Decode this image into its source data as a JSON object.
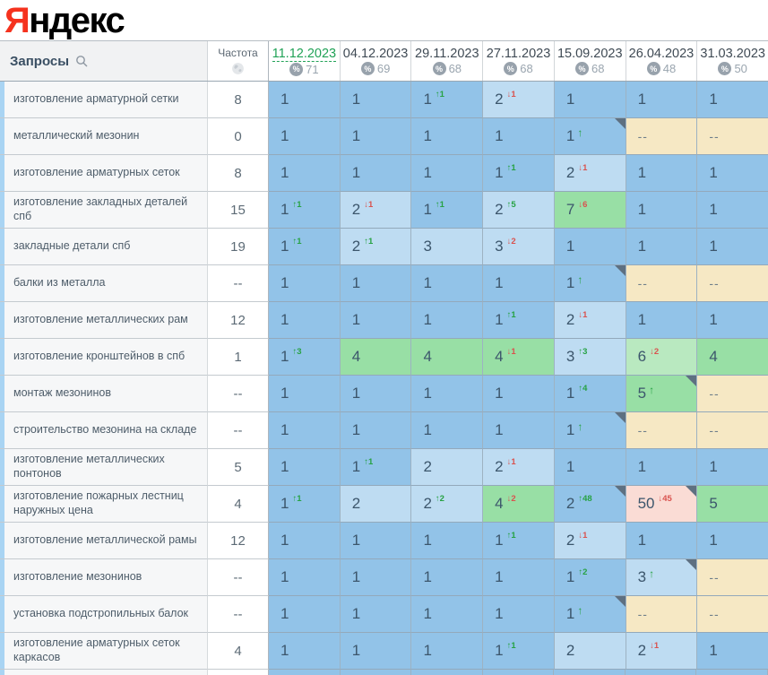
{
  "logo": {
    "first_letter": "Я",
    "rest": "ндекс"
  },
  "header": {
    "queries_label": "Запросы",
    "frequency_label": "Частота",
    "dates": [
      {
        "label": "11.12.2023",
        "metric": "71",
        "selected": true
      },
      {
        "label": "04.12.2023",
        "metric": "69",
        "selected": false
      },
      {
        "label": "29.11.2023",
        "metric": "68",
        "selected": false
      },
      {
        "label": "27.11.2023",
        "metric": "68",
        "selected": false
      },
      {
        "label": "15.09.2023",
        "metric": "68",
        "selected": false
      },
      {
        "label": "26.04.2023",
        "metric": "48",
        "selected": false
      },
      {
        "label": "31.03.2023",
        "metric": "50",
        "selected": false
      }
    ],
    "percent_icon": "%"
  },
  "colors": {
    "logo_red": "#f5321e",
    "selected_date_green": "#21a257",
    "change_up_green": "#27a244",
    "change_down_red": "#d9534f",
    "cell_blue": "#92c3e8",
    "cell_lightblue": "#bedcf2",
    "cell_green": "#98dfa5",
    "cell_lightgreen": "#b9e9c0",
    "cell_beige": "#f6e8c4",
    "cell_pink": "#fadcd5",
    "row_stripe_blue": "#a9d4f3"
  },
  "rows": [
    {
      "query": "изготовление арматурной сетки",
      "frequency": "8",
      "cells": [
        {
          "v": "1",
          "bg": "blue"
        },
        {
          "v": "1",
          "bg": "blue"
        },
        {
          "v": "1",
          "bg": "blue",
          "dir": "up",
          "chg": "1"
        },
        {
          "v": "2",
          "bg": "lightblue",
          "dir": "down",
          "chg": "1"
        },
        {
          "v": "1",
          "bg": "blue"
        },
        {
          "v": "1",
          "bg": "blue"
        },
        {
          "v": "1",
          "bg": "blue"
        }
      ]
    },
    {
      "query": "металлический мезонин",
      "frequency": "0",
      "cells": [
        {
          "v": "1",
          "bg": "blue"
        },
        {
          "v": "1",
          "bg": "blue"
        },
        {
          "v": "1",
          "bg": "blue"
        },
        {
          "v": "1",
          "bg": "blue"
        },
        {
          "v": "1",
          "bg": "blue",
          "arrow": true,
          "corner": true
        },
        {
          "v": "--",
          "bg": "beige"
        },
        {
          "v": "--",
          "bg": "beige"
        }
      ]
    },
    {
      "query": "изготовление арматурных сеток",
      "frequency": "8",
      "cells": [
        {
          "v": "1",
          "bg": "blue"
        },
        {
          "v": "1",
          "bg": "blue"
        },
        {
          "v": "1",
          "bg": "blue"
        },
        {
          "v": "1",
          "bg": "blue",
          "dir": "up",
          "chg": "1"
        },
        {
          "v": "2",
          "bg": "lightblue",
          "dir": "down",
          "chg": "1"
        },
        {
          "v": "1",
          "bg": "blue"
        },
        {
          "v": "1",
          "bg": "blue"
        }
      ]
    },
    {
      "query": "изготовление закладных деталей спб",
      "frequency": "15",
      "cells": [
        {
          "v": "1",
          "bg": "blue",
          "dir": "up",
          "chg": "1"
        },
        {
          "v": "2",
          "bg": "lightblue",
          "dir": "down",
          "chg": "1"
        },
        {
          "v": "1",
          "bg": "blue",
          "dir": "up",
          "chg": "1"
        },
        {
          "v": "2",
          "bg": "lightblue",
          "dir": "up",
          "chg": "5"
        },
        {
          "v": "7",
          "bg": "green",
          "dir": "down",
          "chg": "6"
        },
        {
          "v": "1",
          "bg": "blue"
        },
        {
          "v": "1",
          "bg": "blue"
        }
      ]
    },
    {
      "query": "закладные детали спб",
      "frequency": "19",
      "cells": [
        {
          "v": "1",
          "bg": "blue",
          "dir": "up",
          "chg": "1"
        },
        {
          "v": "2",
          "bg": "lightblue",
          "dir": "up",
          "chg": "1"
        },
        {
          "v": "3",
          "bg": "lightblue"
        },
        {
          "v": "3",
          "bg": "lightblue",
          "dir": "down",
          "chg": "2"
        },
        {
          "v": "1",
          "bg": "blue"
        },
        {
          "v": "1",
          "bg": "blue"
        },
        {
          "v": "1",
          "bg": "blue"
        }
      ]
    },
    {
      "query": "балки из металла",
      "frequency": "--",
      "cells": [
        {
          "v": "1",
          "bg": "blue"
        },
        {
          "v": "1",
          "bg": "blue"
        },
        {
          "v": "1",
          "bg": "blue"
        },
        {
          "v": "1",
          "bg": "blue"
        },
        {
          "v": "1",
          "bg": "blue",
          "arrow": true,
          "corner": true
        },
        {
          "v": "--",
          "bg": "beige"
        },
        {
          "v": "--",
          "bg": "beige"
        }
      ]
    },
    {
      "query": "изготовление металлических рам",
      "frequency": "12",
      "cells": [
        {
          "v": "1",
          "bg": "blue"
        },
        {
          "v": "1",
          "bg": "blue"
        },
        {
          "v": "1",
          "bg": "blue"
        },
        {
          "v": "1",
          "bg": "blue",
          "dir": "up",
          "chg": "1"
        },
        {
          "v": "2",
          "bg": "lightblue",
          "dir": "down",
          "chg": "1"
        },
        {
          "v": "1",
          "bg": "blue"
        },
        {
          "v": "1",
          "bg": "blue"
        }
      ]
    },
    {
      "query": "изготовление кронштейнов в спб",
      "frequency": "1",
      "cells": [
        {
          "v": "1",
          "bg": "blue",
          "dir": "up",
          "chg": "3"
        },
        {
          "v": "4",
          "bg": "green"
        },
        {
          "v": "4",
          "bg": "green"
        },
        {
          "v": "4",
          "bg": "green",
          "dir": "down",
          "chg": "1"
        },
        {
          "v": "3",
          "bg": "lightblue",
          "dir": "up",
          "chg": "3"
        },
        {
          "v": "6",
          "bg": "lightgreen",
          "dir": "down",
          "chg": "2"
        },
        {
          "v": "4",
          "bg": "green"
        }
      ]
    },
    {
      "query": "монтаж мезонинов",
      "frequency": "--",
      "cells": [
        {
          "v": "1",
          "bg": "blue"
        },
        {
          "v": "1",
          "bg": "blue"
        },
        {
          "v": "1",
          "bg": "blue"
        },
        {
          "v": "1",
          "bg": "blue"
        },
        {
          "v": "1",
          "bg": "blue",
          "dir": "up",
          "chg": "4"
        },
        {
          "v": "5",
          "bg": "green",
          "arrow": true,
          "corner": true
        },
        {
          "v": "--",
          "bg": "beige"
        }
      ]
    },
    {
      "query": "строительство мезонина на складе",
      "frequency": "--",
      "cells": [
        {
          "v": "1",
          "bg": "blue"
        },
        {
          "v": "1",
          "bg": "blue"
        },
        {
          "v": "1",
          "bg": "blue"
        },
        {
          "v": "1",
          "bg": "blue"
        },
        {
          "v": "1",
          "bg": "blue",
          "arrow": true,
          "corner": true
        },
        {
          "v": "--",
          "bg": "beige"
        },
        {
          "v": "--",
          "bg": "beige"
        }
      ]
    },
    {
      "query": "изготовление металлических понтонов",
      "frequency": "5",
      "cells": [
        {
          "v": "1",
          "bg": "blue"
        },
        {
          "v": "1",
          "bg": "blue",
          "dir": "up",
          "chg": "1"
        },
        {
          "v": "2",
          "bg": "lightblue"
        },
        {
          "v": "2",
          "bg": "lightblue",
          "dir": "down",
          "chg": "1"
        },
        {
          "v": "1",
          "bg": "blue"
        },
        {
          "v": "1",
          "bg": "blue"
        },
        {
          "v": "1",
          "bg": "blue"
        }
      ]
    },
    {
      "query": "изготовление пожарных лестниц наружных цена",
      "frequency": "4",
      "cells": [
        {
          "v": "1",
          "bg": "blue",
          "dir": "up",
          "chg": "1"
        },
        {
          "v": "2",
          "bg": "lightblue"
        },
        {
          "v": "2",
          "bg": "lightblue",
          "dir": "up",
          "chg": "2"
        },
        {
          "v": "4",
          "bg": "green",
          "dir": "down",
          "chg": "2"
        },
        {
          "v": "2",
          "bg": "blue",
          "dir": "up",
          "chg": "48",
          "corner": true
        },
        {
          "v": "50",
          "bg": "pink",
          "dir": "down",
          "chg": "45",
          "corner": true
        },
        {
          "v": "5",
          "bg": "green"
        }
      ]
    },
    {
      "query": "изготовление металлической рамы",
      "frequency": "12",
      "cells": [
        {
          "v": "1",
          "bg": "blue"
        },
        {
          "v": "1",
          "bg": "blue"
        },
        {
          "v": "1",
          "bg": "blue"
        },
        {
          "v": "1",
          "bg": "blue",
          "dir": "up",
          "chg": "1"
        },
        {
          "v": "2",
          "bg": "lightblue",
          "dir": "down",
          "chg": "1"
        },
        {
          "v": "1",
          "bg": "blue"
        },
        {
          "v": "1",
          "bg": "blue"
        }
      ]
    },
    {
      "query": "изготовление мезонинов",
      "frequency": "--",
      "cells": [
        {
          "v": "1",
          "bg": "blue"
        },
        {
          "v": "1",
          "bg": "blue"
        },
        {
          "v": "1",
          "bg": "blue"
        },
        {
          "v": "1",
          "bg": "blue"
        },
        {
          "v": "1",
          "bg": "blue",
          "dir": "up",
          "chg": "2"
        },
        {
          "v": "3",
          "bg": "lightblue",
          "arrow": true,
          "corner": true
        },
        {
          "v": "--",
          "bg": "beige"
        }
      ]
    },
    {
      "query": "установка подстропильных балок",
      "frequency": "--",
      "cells": [
        {
          "v": "1",
          "bg": "blue"
        },
        {
          "v": "1",
          "bg": "blue"
        },
        {
          "v": "1",
          "bg": "blue"
        },
        {
          "v": "1",
          "bg": "blue"
        },
        {
          "v": "1",
          "bg": "blue",
          "arrow": true,
          "corner": true
        },
        {
          "v": "--",
          "bg": "beige"
        },
        {
          "v": "--",
          "bg": "beige"
        }
      ]
    },
    {
      "query": "изготовление арматурных сеток каркасов",
      "frequency": "4",
      "cells": [
        {
          "v": "1",
          "bg": "blue"
        },
        {
          "v": "1",
          "bg": "blue"
        },
        {
          "v": "1",
          "bg": "blue"
        },
        {
          "v": "1",
          "bg": "blue",
          "dir": "up",
          "chg": "1"
        },
        {
          "v": "2",
          "bg": "lightblue"
        },
        {
          "v": "2",
          "bg": "lightblue",
          "dir": "down",
          "chg": "1"
        },
        {
          "v": "1",
          "bg": "blue"
        }
      ]
    }
  ]
}
